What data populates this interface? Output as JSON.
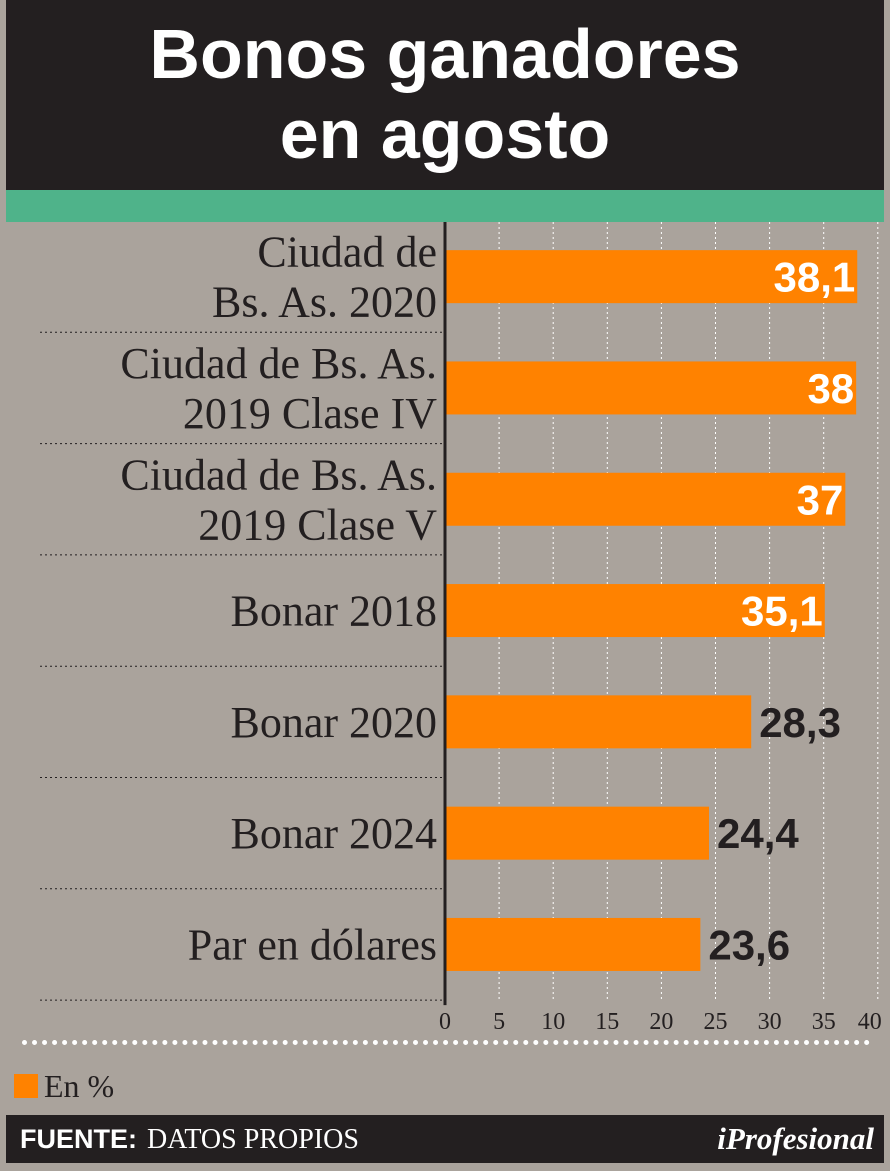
{
  "title_lines": [
    "Bonos ganadores",
    "en agosto"
  ],
  "colors": {
    "bar": "#ff8200",
    "header_bg": "#231f20",
    "band": "#4fb38a",
    "panel_bg": "#aaa39c",
    "label_inside": "#ffffff",
    "label_outside": "#231f20"
  },
  "chart_data": {
    "type": "bar",
    "orientation": "horizontal",
    "title": "Bonos ganadores en agosto",
    "categories": [
      [
        "Ciudad de",
        "Bs. As. 2020"
      ],
      [
        "Ciudad de Bs. As.",
        "2019 Clase IV"
      ],
      [
        "Ciudad de Bs. As.",
        "2019 Clase V"
      ],
      [
        "Bonar 2018"
      ],
      [
        "Bonar 2020"
      ],
      [
        "Bonar 2024"
      ],
      [
        "Par en dólares"
      ]
    ],
    "series": [
      {
        "name": "En %",
        "values": [
          38.1,
          38,
          37,
          35.1,
          28.3,
          24.4,
          23.6
        ],
        "labels": [
          "38,1",
          "38",
          "37",
          "35,1",
          "28,3",
          "24,4",
          "23,6"
        ]
      }
    ],
    "xlim": [
      0,
      40
    ],
    "xticks": [
      0,
      5,
      10,
      15,
      20,
      25,
      30,
      35,
      40
    ],
    "xtick_labels": [
      "0",
      "5",
      "10",
      "15",
      "20",
      "25",
      "30",
      "35",
      "40"
    ],
    "grid": true,
    "legend": "bottom-left"
  },
  "legend": {
    "label": "En %"
  },
  "footer": {
    "source_key": "FUENTE:",
    "source_value": "DATOS PROPIOS",
    "brand": "iProfesional"
  }
}
